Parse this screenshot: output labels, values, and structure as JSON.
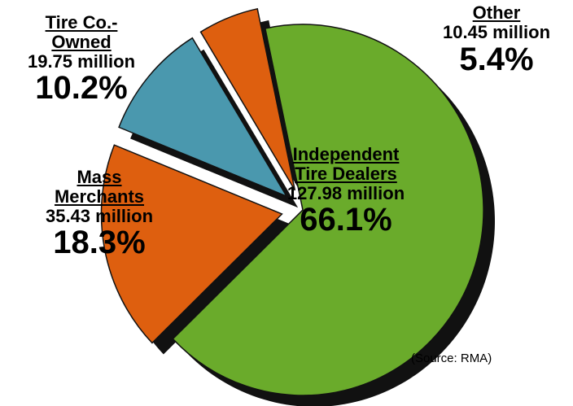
{
  "chart_data": {
    "type": "pie",
    "categories": [
      "Independent Tire Dealers",
      "Mass Merchants",
      "Tire Co.-Owned",
      "Other"
    ],
    "values": [
      66.1,
      18.3,
      10.2,
      5.4
    ],
    "value_labels": [
      "66.1%",
      "18.3%",
      "10.2%",
      "5.4%"
    ],
    "amounts": [
      "127.98 million",
      "35.43 million",
      "19.75 million",
      "10.45 million"
    ],
    "colors": [
      "#6aab2b",
      "#de5f0f",
      "#4a98ae",
      "#de5f0f"
    ],
    "note": "(Source: RMA)"
  }
}
